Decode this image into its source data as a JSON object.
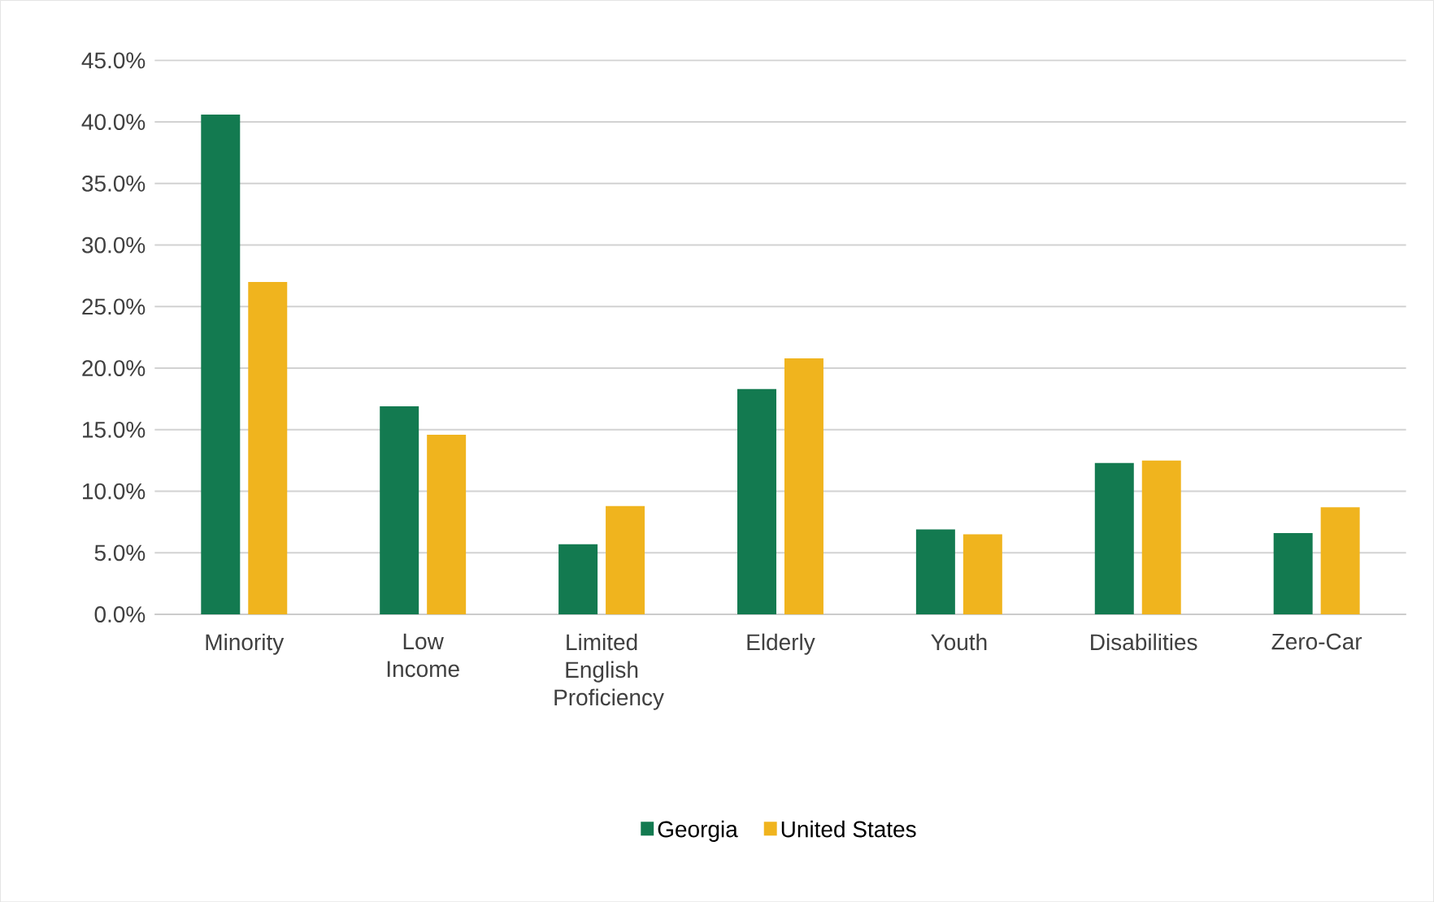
{
  "chart_data": {
    "type": "bar",
    "categories": [
      "Minority",
      "Low Income",
      "Limited English Proficiency",
      "Elderly",
      "Youth",
      "Disabilities",
      "Zero-Car"
    ],
    "series": [
      {
        "name": "Georgia",
        "color": "#137a50",
        "values": [
          40.6,
          16.9,
          5.7,
          18.3,
          6.9,
          12.3,
          6.6
        ]
      },
      {
        "name": "United States",
        "color": "#f0b41e",
        "values": [
          27.0,
          14.6,
          8.8,
          20.8,
          6.5,
          12.5,
          8.7
        ]
      }
    ],
    "ylim": [
      0,
      45
    ],
    "yticks": [
      {
        "value": 0,
        "label": "0.0%"
      },
      {
        "value": 5,
        "label": "5.0%"
      },
      {
        "value": 10,
        "label": "10.0%"
      },
      {
        "value": 15,
        "label": "15.0%"
      },
      {
        "value": 20,
        "label": "20.0%"
      },
      {
        "value": 25,
        "label": "25.0%"
      },
      {
        "value": 30,
        "label": "30.0%"
      },
      {
        "value": 35,
        "label": "35.0%"
      },
      {
        "value": 40,
        "label": "40.0%"
      },
      {
        "value": 45,
        "label": "45.0%"
      }
    ],
    "grid": "y",
    "legend": "bottom"
  }
}
